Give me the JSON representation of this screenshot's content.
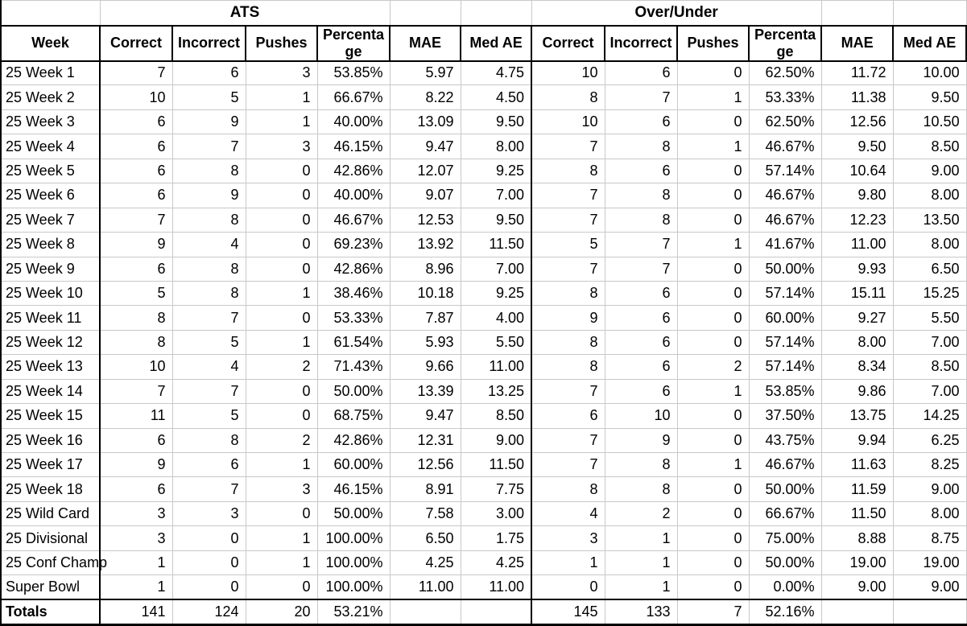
{
  "table": {
    "group_headers": {
      "ats": "ATS",
      "over_under": "Over/Under"
    },
    "columns": [
      "Week",
      "Correct",
      "Incorrect",
      "Pushes",
      "Percentage",
      "MAE",
      "Med AE",
      "Correct",
      "Incorrect",
      "Pushes",
      "Percentage",
      "MAE",
      "Med AE"
    ],
    "rows": [
      {
        "week": "25 Week 1",
        "ats": [
          "7",
          "6",
          "3",
          "53.85%",
          "5.97",
          "4.75"
        ],
        "over_under": [
          "10",
          "6",
          "0",
          "62.50%",
          "11.72",
          "10.00"
        ]
      },
      {
        "week": "25 Week 2",
        "ats": [
          "10",
          "5",
          "1",
          "66.67%",
          "8.22",
          "4.50"
        ],
        "over_under": [
          "8",
          "7",
          "1",
          "53.33%",
          "11.38",
          "9.50"
        ]
      },
      {
        "week": "25 Week 3",
        "ats": [
          "6",
          "9",
          "1",
          "40.00%",
          "13.09",
          "9.50"
        ],
        "over_under": [
          "10",
          "6",
          "0",
          "62.50%",
          "12.56",
          "10.50"
        ]
      },
      {
        "week": "25 Week 4",
        "ats": [
          "6",
          "7",
          "3",
          "46.15%",
          "9.47",
          "8.00"
        ],
        "over_under": [
          "7",
          "8",
          "1",
          "46.67%",
          "9.50",
          "8.50"
        ]
      },
      {
        "week": "25 Week 5",
        "ats": [
          "6",
          "8",
          "0",
          "42.86%",
          "12.07",
          "9.25"
        ],
        "over_under": [
          "8",
          "6",
          "0",
          "57.14%",
          "10.64",
          "9.00"
        ]
      },
      {
        "week": "25 Week 6",
        "ats": [
          "6",
          "9",
          "0",
          "40.00%",
          "9.07",
          "7.00"
        ],
        "over_under": [
          "7",
          "8",
          "0",
          "46.67%",
          "9.80",
          "8.00"
        ]
      },
      {
        "week": "25 Week 7",
        "ats": [
          "7",
          "8",
          "0",
          "46.67%",
          "12.53",
          "9.50"
        ],
        "over_under": [
          "7",
          "8",
          "0",
          "46.67%",
          "12.23",
          "13.50"
        ]
      },
      {
        "week": "25 Week 8",
        "ats": [
          "9",
          "4",
          "0",
          "69.23%",
          "13.92",
          "11.50"
        ],
        "over_under": [
          "5",
          "7",
          "1",
          "41.67%",
          "11.00",
          "8.00"
        ]
      },
      {
        "week": "25 Week 9",
        "ats": [
          "6",
          "8",
          "0",
          "42.86%",
          "8.96",
          "7.00"
        ],
        "over_under": [
          "7",
          "7",
          "0",
          "50.00%",
          "9.93",
          "6.50"
        ]
      },
      {
        "week": "25 Week 10",
        "ats": [
          "5",
          "8",
          "1",
          "38.46%",
          "10.18",
          "9.25"
        ],
        "over_under": [
          "8",
          "6",
          "0",
          "57.14%",
          "15.11",
          "15.25"
        ]
      },
      {
        "week": "25 Week 11",
        "ats": [
          "8",
          "7",
          "0",
          "53.33%",
          "7.87",
          "4.00"
        ],
        "over_under": [
          "9",
          "6",
          "0",
          "60.00%",
          "9.27",
          "5.50"
        ]
      },
      {
        "week": "25 Week 12",
        "ats": [
          "8",
          "5",
          "1",
          "61.54%",
          "5.93",
          "5.50"
        ],
        "over_under": [
          "8",
          "6",
          "0",
          "57.14%",
          "8.00",
          "7.00"
        ]
      },
      {
        "week": "25 Week 13",
        "ats": [
          "10",
          "4",
          "2",
          "71.43%",
          "9.66",
          "11.00"
        ],
        "over_under": [
          "8",
          "6",
          "2",
          "57.14%",
          "8.34",
          "8.50"
        ]
      },
      {
        "week": "25 Week 14",
        "ats": [
          "7",
          "7",
          "0",
          "50.00%",
          "13.39",
          "13.25"
        ],
        "over_under": [
          "7",
          "6",
          "1",
          "53.85%",
          "9.86",
          "7.00"
        ]
      },
      {
        "week": "25 Week 15",
        "ats": [
          "11",
          "5",
          "0",
          "68.75%",
          "9.47",
          "8.50"
        ],
        "over_under": [
          "6",
          "10",
          "0",
          "37.50%",
          "13.75",
          "14.25"
        ]
      },
      {
        "week": "25 Week 16",
        "ats": [
          "6",
          "8",
          "2",
          "42.86%",
          "12.31",
          "9.00"
        ],
        "over_under": [
          "7",
          "9",
          "0",
          "43.75%",
          "9.94",
          "6.25"
        ]
      },
      {
        "week": "25 Week 17",
        "ats": [
          "9",
          "6",
          "1",
          "60.00%",
          "12.56",
          "11.50"
        ],
        "over_under": [
          "7",
          "8",
          "1",
          "46.67%",
          "11.63",
          "8.25"
        ]
      },
      {
        "week": "25 Week 18",
        "ats": [
          "6",
          "7",
          "3",
          "46.15%",
          "8.91",
          "7.75"
        ],
        "over_under": [
          "8",
          "8",
          "0",
          "50.00%",
          "11.59",
          "9.00"
        ]
      },
      {
        "week": "25 Wild Card",
        "ats": [
          "3",
          "3",
          "0",
          "50.00%",
          "7.58",
          "3.00"
        ],
        "over_under": [
          "4",
          "2",
          "0",
          "66.67%",
          "11.50",
          "8.00"
        ]
      },
      {
        "week": "25 Divisional",
        "ats": [
          "3",
          "0",
          "1",
          "100.00%",
          "6.50",
          "1.75"
        ],
        "over_under": [
          "3",
          "1",
          "0",
          "75.00%",
          "8.88",
          "8.75"
        ]
      },
      {
        "week": "25 Conf Champ",
        "ats": [
          "1",
          "0",
          "1",
          "100.00%",
          "4.25",
          "4.25"
        ],
        "over_under": [
          "1",
          "1",
          "0",
          "50.00%",
          "19.00",
          "19.00"
        ]
      },
      {
        "week": "Super Bowl",
        "ats": [
          "1",
          "0",
          "0",
          "100.00%",
          "11.00",
          "11.00"
        ],
        "over_under": [
          "0",
          "1",
          "0",
          "0.00%",
          "9.00",
          "9.00"
        ]
      }
    ],
    "totals": {
      "label": "Totals",
      "ats": [
        "141",
        "124",
        "20",
        "53.21%",
        "",
        ""
      ],
      "over_under": [
        "145",
        "133",
        "7",
        "52.16%",
        "",
        ""
      ]
    }
  },
  "colors": {
    "grid_line": "#c8c8c8",
    "strong_line": "#000000",
    "background": "#ffffff",
    "text": "#000000"
  }
}
